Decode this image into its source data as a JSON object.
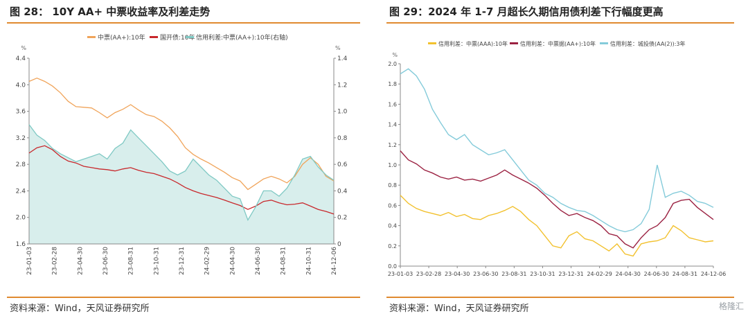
{
  "panels": {
    "left": {
      "title": "图 28：   10Y AA+  中票收益率及利差走势",
      "source": "资料来源：Wind，天风证券研究所"
    },
    "right": {
      "title": "图 29：2024 年 1-7 月超长久期信用债利差下行幅度更高",
      "source": "资料来源：Wind，天风证券研究所"
    }
  },
  "watermark": "格隆汇",
  "chart_data": [
    {
      "type": "line",
      "title": "10Y AA+ 中票收益率及利差走势",
      "ylabel_left": "%",
      "ylabel_right": "%",
      "ylim": [
        1.6,
        4.4
      ],
      "y2lim": [
        0,
        1.4
      ],
      "yticks": [
        "1.6",
        "2.0",
        "2.4",
        "2.8",
        "3.2",
        "3.6",
        "4.0",
        "4.4"
      ],
      "y2ticks": [
        "0",
        "0.2",
        "0.4",
        "0.6",
        "0.8",
        "1.0",
        "1.2",
        "1.4"
      ],
      "xticks": [
        "23-01-03",
        "23-02-28",
        "23-04-30",
        "23-06-30",
        "23-08-31",
        "23-10-31",
        "23-12-31",
        "24-02-29",
        "24-04-30",
        "24-06-30",
        "24-08-31",
        "24-10-31",
        "24-12-06"
      ],
      "colors": {
        "zhongpiao": "#F0A45A",
        "guokai": "#C8282C",
        "spread": "#7FC9C4",
        "spread_fill": "#D8EEEC"
      },
      "legend": [
        "中票(AA+):10年",
        "国开债:10年",
        "信用利差:中票(AA+):10年(右轴)"
      ],
      "series": [
        {
          "name": "中票(AA+):10年",
          "axis": "left",
          "values": [
            4.05,
            4.1,
            4.05,
            3.98,
            3.88,
            3.75,
            3.67,
            3.66,
            3.65,
            3.58,
            3.5,
            3.58,
            3.63,
            3.7,
            3.62,
            3.55,
            3.52,
            3.45,
            3.35,
            3.22,
            3.05,
            2.95,
            2.88,
            2.82,
            2.75,
            2.68,
            2.6,
            2.55,
            2.42,
            2.5,
            2.58,
            2.62,
            2.58,
            2.52,
            2.62,
            2.8,
            2.9,
            2.8,
            2.62,
            2.55
          ]
        },
        {
          "name": "国开债:10年",
          "axis": "left",
          "values": [
            2.97,
            3.05,
            3.08,
            3.02,
            2.92,
            2.85,
            2.82,
            2.77,
            2.75,
            2.73,
            2.72,
            2.7,
            2.73,
            2.75,
            2.71,
            2.68,
            2.66,
            2.62,
            2.58,
            2.52,
            2.45,
            2.4,
            2.36,
            2.33,
            2.3,
            2.26,
            2.22,
            2.18,
            2.12,
            2.17,
            2.24,
            2.26,
            2.22,
            2.19,
            2.2,
            2.22,
            2.17,
            2.12,
            2.09,
            2.05
          ]
        },
        {
          "name": "信用利差:中票(AA+):10年(右轴)",
          "axis": "right",
          "values": [
            0.9,
            0.82,
            0.78,
            0.72,
            0.68,
            0.65,
            0.62,
            0.64,
            0.66,
            0.68,
            0.64,
            0.72,
            0.76,
            0.86,
            0.8,
            0.74,
            0.68,
            0.62,
            0.55,
            0.52,
            0.55,
            0.64,
            0.58,
            0.52,
            0.48,
            0.42,
            0.36,
            0.34,
            0.18,
            0.28,
            0.4,
            0.4,
            0.36,
            0.42,
            0.52,
            0.64,
            0.66,
            0.58,
            0.52,
            0.48
          ]
        }
      ]
    },
    {
      "type": "line",
      "title": "2024 年 1-7 月超长久期信用债利差下行幅度更高",
      "ylabel": "%",
      "ylim": [
        0,
        2.0
      ],
      "yticks": [
        "0.0",
        "0.2",
        "0.4",
        "0.6",
        "0.8",
        "1.0",
        "1.2",
        "1.4",
        "1.6",
        "1.8",
        "2.0"
      ],
      "xticks": [
        "23-01-03",
        "23-02-28",
        "23-04-30",
        "23-06-30",
        "23-08-31",
        "23-10-31",
        "23-12-31",
        "24-02-29",
        "24-04-30",
        "24-06-30",
        "24-08-31",
        "24-12-06"
      ],
      "colors": {
        "aaa": "#F2C12E",
        "aaplus": "#9B2242",
        "chengtou": "#84CBDA"
      },
      "legend": [
        "信用利差：中票(AAA):10年",
        "信用利差：中票据(AA+):10年",
        "信用利差：城投债(AA(2)):3年"
      ],
      "series": [
        {
          "name": "信用利差：中票(AAA):10年",
          "values": [
            0.7,
            0.62,
            0.57,
            0.54,
            0.52,
            0.5,
            0.53,
            0.49,
            0.51,
            0.47,
            0.46,
            0.5,
            0.52,
            0.55,
            0.59,
            0.54,
            0.46,
            0.4,
            0.3,
            0.2,
            0.18,
            0.3,
            0.34,
            0.27,
            0.25,
            0.2,
            0.15,
            0.22,
            0.12,
            0.1,
            0.22,
            0.24,
            0.25,
            0.28,
            0.4,
            0.35,
            0.28,
            0.26,
            0.24,
            0.25
          ]
        },
        {
          "name": "信用利差：中票据(AA+):10年",
          "values": [
            1.14,
            1.05,
            1.01,
            0.95,
            0.92,
            0.88,
            0.86,
            0.88,
            0.85,
            0.86,
            0.84,
            0.87,
            0.9,
            0.95,
            0.9,
            0.86,
            0.82,
            0.77,
            0.7,
            0.62,
            0.55,
            0.5,
            0.52,
            0.48,
            0.45,
            0.4,
            0.32,
            0.3,
            0.22,
            0.18,
            0.28,
            0.36,
            0.4,
            0.48,
            0.62,
            0.65,
            0.66,
            0.58,
            0.52,
            0.46
          ]
        },
        {
          "name": "信用利差：城投债(AA(2)):3年",
          "values": [
            1.9,
            1.95,
            1.88,
            1.75,
            1.55,
            1.42,
            1.3,
            1.25,
            1.3,
            1.2,
            1.15,
            1.1,
            1.12,
            1.15,
            1.05,
            0.95,
            0.85,
            0.8,
            0.72,
            0.68,
            0.62,
            0.58,
            0.55,
            0.54,
            0.5,
            0.45,
            0.4,
            0.36,
            0.34,
            0.36,
            0.42,
            0.56,
            1.0,
            0.68,
            0.72,
            0.74,
            0.7,
            0.64,
            0.62,
            0.58
          ]
        }
      ]
    }
  ]
}
